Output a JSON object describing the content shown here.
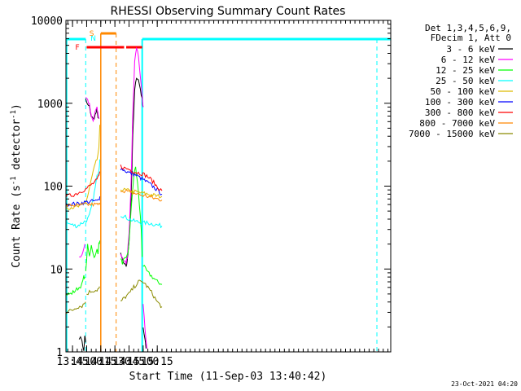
{
  "chart_data": {
    "type": "line",
    "title": "RHESSI Observing Summary Count Rates",
    "xlabel": "Start Time (11-Sep-03 13:40:42)",
    "ylabel_main": "Count Rate (s",
    "ylabel_sup": "-1",
    "ylabel_end": " detector",
    "ylabel_end_sup": "-1",
    "ylabel_close": ")",
    "yscale": "log",
    "ylim": [
      1,
      10000
    ],
    "xlim_min": [
      818,
      1163
    ],
    "x_ticks": [
      {
        "t": 825,
        "label": "13:45"
      },
      {
        "t": 840,
        "label": "14:00"
      },
      {
        "t": 855,
        "label": "14:15"
      },
      {
        "t": 870,
        "label": "14:30"
      },
      {
        "t": 885,
        "label": "14:45"
      },
      {
        "t": 900,
        "label": "15:00"
      },
      {
        "t": 915,
        "label": "15:15"
      }
    ],
    "y_ticks": [
      {
        "v": 1,
        "label": "1"
      },
      {
        "v": 10,
        "label": "10"
      },
      {
        "v": 100,
        "label": "100"
      },
      {
        "v": 1000,
        "label": "1000"
      },
      {
        "v": 10000,
        "label": "10000"
      }
    ],
    "legend_header": [
      "Det 1,3,4,5,6,9,",
      "FDecim 1, Att 0"
    ],
    "series": [
      {
        "name": "3 - 6 keV",
        "color": "#000000",
        "segments": [
          [
            [
              832,
              1.5
            ],
            [
              835,
              1.4
            ],
            [
              837,
              1.0
            ],
            [
              838,
              1.6
            ],
            [
              839,
              1.3
            ]
          ],
          [
            [
              839,
              1100
            ],
            [
              841,
              950
            ],
            [
              843,
              900
            ],
            [
              845,
              700
            ],
            [
              847,
              640
            ],
            [
              849,
              720
            ],
            [
              851,
              820
            ],
            [
              852,
              700
            ],
            [
              853,
              650
            ]
          ],
          [
            [
              876,
              15
            ],
            [
              878,
              13
            ],
            [
              880,
              11
            ],
            [
              882,
              11
            ],
            [
              883,
              12
            ],
            [
              885,
              22
            ],
            [
              887,
              60
            ],
            [
              889,
              400
            ],
            [
              891,
              1400
            ],
            [
              893,
              2100
            ],
            [
              895,
              1900
            ],
            [
              897,
              1500
            ],
            [
              899,
              1100
            ],
            [
              900,
              900
            ]
          ],
          [
            [
              900,
              2
            ],
            [
              902,
              1.4
            ],
            [
              903,
              1.1
            ]
          ]
        ]
      },
      {
        "name": "6 - 12 keV",
        "color": "#ff00ff",
        "segments": [
          [
            [
              832,
              14
            ],
            [
              835,
              15
            ],
            [
              837,
              18
            ],
            [
              838,
              20
            ]
          ],
          [
            [
              839,
              1200
            ],
            [
              841,
              1100
            ],
            [
              843,
              950
            ],
            [
              845,
              680
            ],
            [
              847,
              600
            ],
            [
              849,
              800
            ],
            [
              851,
              860
            ],
            [
              852,
              760
            ],
            [
              853,
              650
            ]
          ],
          [
            [
              876,
              15
            ],
            [
              878,
              14
            ],
            [
              880,
              12
            ],
            [
              882,
              12
            ],
            [
              883,
              14
            ],
            [
              885,
              28
            ],
            [
              887,
              90
            ],
            [
              889,
              800
            ],
            [
              891,
              3200
            ],
            [
              893,
              4800
            ],
            [
              895,
              3500
            ],
            [
              897,
              2000
            ],
            [
              899,
              1200
            ],
            [
              900,
              900
            ]
          ],
          [
            [
              900,
              4
            ],
            [
              902,
              2
            ],
            [
              904,
              1.1
            ]
          ]
        ]
      },
      {
        "name": "12 - 25 keV",
        "color": "#00ff00",
        "segments": [
          [
            [
              818,
              5
            ],
            [
              823,
              5
            ],
            [
              828,
              5.5
            ],
            [
              832,
              6
            ],
            [
              835,
              6.5
            ],
            [
              837,
              8
            ],
            [
              838,
              8
            ]
          ],
          [
            [
              839,
              9
            ],
            [
              841,
              19
            ],
            [
              843,
              14
            ],
            [
              845,
              20
            ],
            [
              847,
              15
            ],
            [
              849,
              14
            ],
            [
              851,
              17
            ],
            [
              852,
              16
            ],
            [
              853,
              20
            ],
            [
              854,
              22
            ]
          ],
          [
            [
              876,
              13
            ],
            [
              878,
              12
            ],
            [
              880,
              13
            ],
            [
              882,
              13
            ],
            [
              884,
              16
            ],
            [
              886,
              30
            ],
            [
              888,
              70
            ],
            [
              890,
              130
            ],
            [
              892,
              170
            ],
            [
              894,
              110
            ],
            [
              896,
              60
            ],
            [
              898,
              30
            ],
            [
              899,
              14
            ]
          ],
          [
            [
              900,
              11
            ],
            [
              905,
              9
            ],
            [
              910,
              8
            ],
            [
              915,
              7
            ],
            [
              920,
              6.5
            ]
          ]
        ]
      },
      {
        "name": "25 - 50 keV",
        "color": "#00ffff",
        "segments": [
          [
            [
              818,
              36
            ],
            [
              825,
              34
            ],
            [
              830,
              33
            ],
            [
              835,
              36
            ],
            [
              839,
              38
            ],
            [
              841,
              40
            ],
            [
              843,
              44
            ],
            [
              845,
              55
            ],
            [
              847,
              70
            ],
            [
              849,
              95
            ],
            [
              851,
              130
            ],
            [
              853,
              160
            ],
            [
              854,
              210
            ]
          ],
          [
            [
              876,
              45
            ],
            [
              880,
              43
            ],
            [
              885,
              40
            ],
            [
              890,
              38
            ],
            [
              895,
              37
            ],
            [
              900,
              36
            ],
            [
              905,
              36
            ],
            [
              910,
              35
            ],
            [
              915,
              34
            ],
            [
              920,
              33
            ]
          ]
        ]
      },
      {
        "name": "50 - 100 keV",
        "color": "#ddbb00",
        "segments": [
          [
            [
              818,
              55
            ],
            [
              825,
              56
            ],
            [
              830,
              56
            ],
            [
              835,
              58
            ],
            [
              839,
              64
            ],
            [
              841,
              75
            ],
            [
              843,
              95
            ],
            [
              845,
              120
            ],
            [
              847,
              150
            ],
            [
              849,
              180
            ],
            [
              851,
              210
            ],
            [
              853,
              280
            ],
            [
              854,
              550
            ]
          ],
          [
            [
              876,
              92
            ],
            [
              880,
              90
            ],
            [
              885,
              88
            ],
            [
              890,
              86
            ],
            [
              895,
              84
            ],
            [
              900,
              82
            ],
            [
              905,
              80
            ],
            [
              910,
              78
            ],
            [
              915,
              76
            ],
            [
              920,
              75
            ]
          ]
        ]
      },
      {
        "name": "100 - 300 keV",
        "color": "#0000ff",
        "segments": [
          [
            [
              818,
              60
            ],
            [
              825,
              61
            ],
            [
              830,
              61
            ],
            [
              835,
              63
            ],
            [
              839,
              64
            ],
            [
              843,
              65
            ],
            [
              847,
              66
            ],
            [
              851,
              66
            ],
            [
              853,
              68
            ],
            [
              854,
              75
            ]
          ],
          [
            [
              876,
              165
            ],
            [
              880,
              155
            ],
            [
              885,
              145
            ],
            [
              890,
              140
            ],
            [
              895,
              130
            ],
            [
              900,
              120
            ],
            [
              905,
              110
            ],
            [
              910,
              100
            ],
            [
              915,
              90
            ],
            [
              920,
              80
            ]
          ]
        ]
      },
      {
        "name": "300 - 800 keV",
        "color": "#ff0000",
        "segments": [
          [
            [
              818,
              75
            ],
            [
              825,
              78
            ],
            [
              830,
              82
            ],
            [
              835,
              88
            ],
            [
              839,
              92
            ],
            [
              843,
              100
            ],
            [
              847,
              108
            ],
            [
              851,
              118
            ],
            [
              853,
              132
            ],
            [
              854,
              150
            ]
          ],
          [
            [
              876,
              175
            ],
            [
              880,
              165
            ],
            [
              885,
              160
            ],
            [
              890,
              150
            ],
            [
              895,
              145
            ],
            [
              900,
              140
            ],
            [
              905,
              130
            ],
            [
              910,
              115
            ],
            [
              915,
              98
            ],
            [
              920,
              88
            ]
          ]
        ]
      },
      {
        "name": "800 - 7000 keV",
        "color": "#ff8800",
        "segments": [
          [
            [
              818,
              58
            ],
            [
              825,
              59
            ],
            [
              830,
              58
            ],
            [
              835,
              59
            ],
            [
              839,
              60
            ],
            [
              843,
              60
            ],
            [
              847,
              60
            ],
            [
              851,
              60
            ],
            [
              853,
              60
            ],
            [
              854,
              60
            ]
          ],
          [
            [
              876,
              90
            ],
            [
              880,
              88
            ],
            [
              885,
              85
            ],
            [
              890,
              82
            ],
            [
              895,
              80
            ],
            [
              900,
              77
            ],
            [
              905,
              75
            ],
            [
              910,
              72
            ],
            [
              915,
              70
            ],
            [
              920,
              68
            ]
          ]
        ]
      },
      {
        "name": "7000 - 15000 keV",
        "color": "#8b8b00",
        "segments": [
          [
            [
              818,
              3
            ],
            [
              825,
              3.2
            ],
            [
              830,
              3.5
            ],
            [
              835,
              3.6
            ],
            [
              839,
              4
            ]
          ],
          [
            [
              840,
              5
            ],
            [
              843,
              5.3
            ],
            [
              847,
              5.5
            ],
            [
              851,
              5.6
            ],
            [
              853,
              5.8
            ],
            [
              854,
              6
            ]
          ],
          [
            [
              876,
              4
            ],
            [
              880,
              4.5
            ],
            [
              885,
              5
            ],
            [
              890,
              6
            ],
            [
              895,
              7
            ],
            [
              900,
              7
            ],
            [
              905,
              6
            ],
            [
              910,
              5
            ],
            [
              915,
              4
            ],
            [
              920,
              3.5
            ]
          ]
        ]
      }
    ],
    "annotations": [
      {
        "label": "N",
        "t_start": 839,
        "t_end": 899,
        "color": "#00ffff"
      },
      {
        "label": "S",
        "t_start": 855,
        "t_end": 867,
        "color": "#ff8800"
      },
      {
        "label": "F",
        "t_start": 840,
        "t_end": 900,
        "color": "#ff0000"
      }
    ],
    "timestamp": "23-Oct-2021 04:20"
  }
}
